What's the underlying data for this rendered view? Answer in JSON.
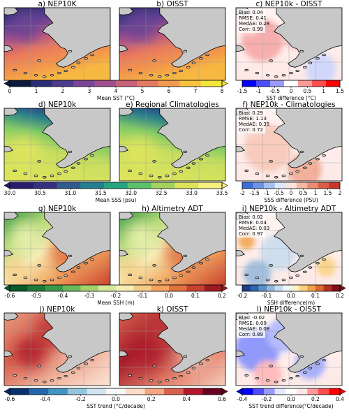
{
  "chart_data": [
    {
      "type": "heatmap",
      "rows": [
        {
          "panels": [
            {
              "id": "a",
              "title": "a) NEP10K",
              "field": "sst"
            },
            {
              "id": "b",
              "title": "b) OISST",
              "field": "sst"
            },
            {
              "id": "c",
              "title": "c) NEP10k - OISST",
              "field": "sst_diff",
              "stats": [
                "Bias: 0.04",
                "RMSE: 0.41",
                "MedAE: 0.28",
                "Corr: 0.99"
              ]
            }
          ],
          "colorbars": [
            {
              "label": "Mean SST (°C)",
              "ticks": [
                "0",
                "1",
                "2",
                "3",
                "4",
                "5",
                "6",
                "7",
                "8"
              ],
              "range": [
                0,
                8
              ],
              "extend": "both",
              "colors": [
                "#0c1a3d",
                "#2b2e74",
                "#4e3a8e",
                "#7a4596",
                "#a14f8e",
                "#c7617c",
                "#e47a62",
                "#f29a4f",
                "#f7c23e",
                "#f3e53a"
              ]
            },
            {
              "label": "SST difference (°C)",
              "ticks": [
                "-1.5",
                "-1",
                "-0.5",
                "0",
                "0.5",
                "1",
                "1.5"
              ],
              "range": [
                -1.5,
                1.5
              ],
              "extend": "none",
              "colors": [
                "#0000ff",
                "#4d4dff",
                "#9999ff",
                "#ffffff",
                "#ff9999",
                "#ff4d4d",
                "#ff0000"
              ]
            }
          ]
        },
        {
          "panels": [
            {
              "id": "d",
              "title": "d) NEP10k",
              "field": "sss"
            },
            {
              "id": "e",
              "title": "e) Regional Climatologies",
              "field": "sss"
            },
            {
              "id": "f",
              "title": "f) NEP10k - Climatologies",
              "field": "sss_diff",
              "stats": [
                "Bias: 0.29",
                "RMSE: 1.13",
                "MedAE: 0.35",
                "Corr: 0.72"
              ]
            }
          ],
          "colorbars": [
            {
              "label": "Mean SSS (psu)",
              "ticks": [
                "30.0",
                "30.5",
                "31.0",
                "31.5",
                "32.0",
                "32.5",
                "33.0",
                "33.5"
              ],
              "range": [
                30,
                33.5
              ],
              "extend": "both",
              "colors": [
                "#2a1b6e",
                "#35307f",
                "#2f5b8e",
                "#23808f",
                "#27a583",
                "#5cc16b",
                "#a2d45c",
                "#dde45b",
                "#f7ef7e"
              ]
            },
            {
              "label": "SSS difference (PSU)",
              "ticks": [
                "-2",
                "-1.5",
                "-1",
                "-0.5",
                "0",
                "0.5",
                "1",
                "1.5",
                "2"
              ],
              "range": [
                -2,
                2
              ],
              "extend": "none",
              "colors": [
                "#3b6dd8",
                "#6f94e6",
                "#a5bff1",
                "#dde7fa",
                "#fbe3db",
                "#f4b9a4",
                "#ea8c72",
                "#dd5c46",
                "#c6362b"
              ]
            }
          ]
        },
        {
          "panels": [
            {
              "id": "g",
              "title": "g) NEP10k",
              "field": "ssh"
            },
            {
              "id": "h",
              "title": "h) Altimetry ADT",
              "field": "ssh"
            },
            {
              "id": "i",
              "title": "i) NEP10k - Altimetry ADT",
              "field": "ssh_diff",
              "stats": [
                "Bias: 0.02",
                "RMSE: 0.04",
                "MedAE: 0.03",
                "Corr: 0.97"
              ]
            }
          ],
          "colorbars": [
            {
              "label": "Mean SSH (m)",
              "ticks": [
                "-0.6",
                "-0.5",
                "-0.4",
                "-0.3",
                "-0.2",
                "-0.1",
                "0.0",
                "0.1",
                "0.2"
              ],
              "range": [
                -0.6,
                0.2
              ],
              "extend": "both",
              "colors": [
                "#0b5a2c",
                "#1f7a3a",
                "#3c9a48",
                "#6bb85a",
                "#a3d16f",
                "#d4e79a",
                "#f6eeb6",
                "#f7cc87",
                "#f2a35e",
                "#e3713f",
                "#c8422f",
                "#9d1c22"
              ]
            },
            {
              "label": "SSH difference(m)",
              "ticks": [
                "-0.2",
                "-0.1",
                "0.0",
                "0.1",
                "0.2"
              ],
              "range": [
                -0.2,
                0.2
              ],
              "extend": "max",
              "colors": [
                "#1b3f8b",
                "#2e64ad",
                "#5a8fc8",
                "#91b8dc",
                "#c7dcee",
                "#f2f6fa",
                "#fdf3c4",
                "#f9d27c",
                "#f1a14b",
                "#de6830",
                "#b4311f",
                "#7f0d1a"
              ]
            }
          ]
        },
        {
          "panels": [
            {
              "id": "j",
              "title": "j) NEP10k",
              "field": "trend"
            },
            {
              "id": "k",
              "title": "k) OISST",
              "field": "trend"
            },
            {
              "id": "l",
              "title": "l) NEP10k - OISST",
              "field": "trend_diff",
              "stats": [
                "Bias: -0.02",
                "RMSE: 0.09",
                "MedAE: 0.08",
                "Corr: 0.89"
              ]
            }
          ],
          "colorbars": [
            {
              "label": "SST trend (°C/decade)",
              "ticks": [
                "-0.6",
                "-0.4",
                "-0.2",
                "0.0",
                "0.2",
                "0.4",
                "0.6"
              ],
              "range": [
                -0.6,
                0.6
              ],
              "extend": "both",
              "colors": [
                "#08306b",
                "#2166ac",
                "#4393c3",
                "#92c5de",
                "#d1e5f0",
                "#f7f7f7",
                "#fddbc7",
                "#f4a582",
                "#d6604d",
                "#b2182b",
                "#67001f"
              ]
            },
            {
              "label": "SST trend difference(°C/decade)",
              "ticks": [
                "-0.4",
                "-0.2",
                "0.0",
                "0.2",
                "0.4"
              ],
              "range": [
                -0.4,
                0.4
              ],
              "extend": "both",
              "colors": [
                "#0000ff",
                "#4d4dff",
                "#9999ff",
                "#e6e6ff",
                "#ffffff",
                "#ffe6e6",
                "#ff9999",
                "#ff4d4d",
                "#ff0000"
              ]
            }
          ]
        }
      ]
    }
  ]
}
